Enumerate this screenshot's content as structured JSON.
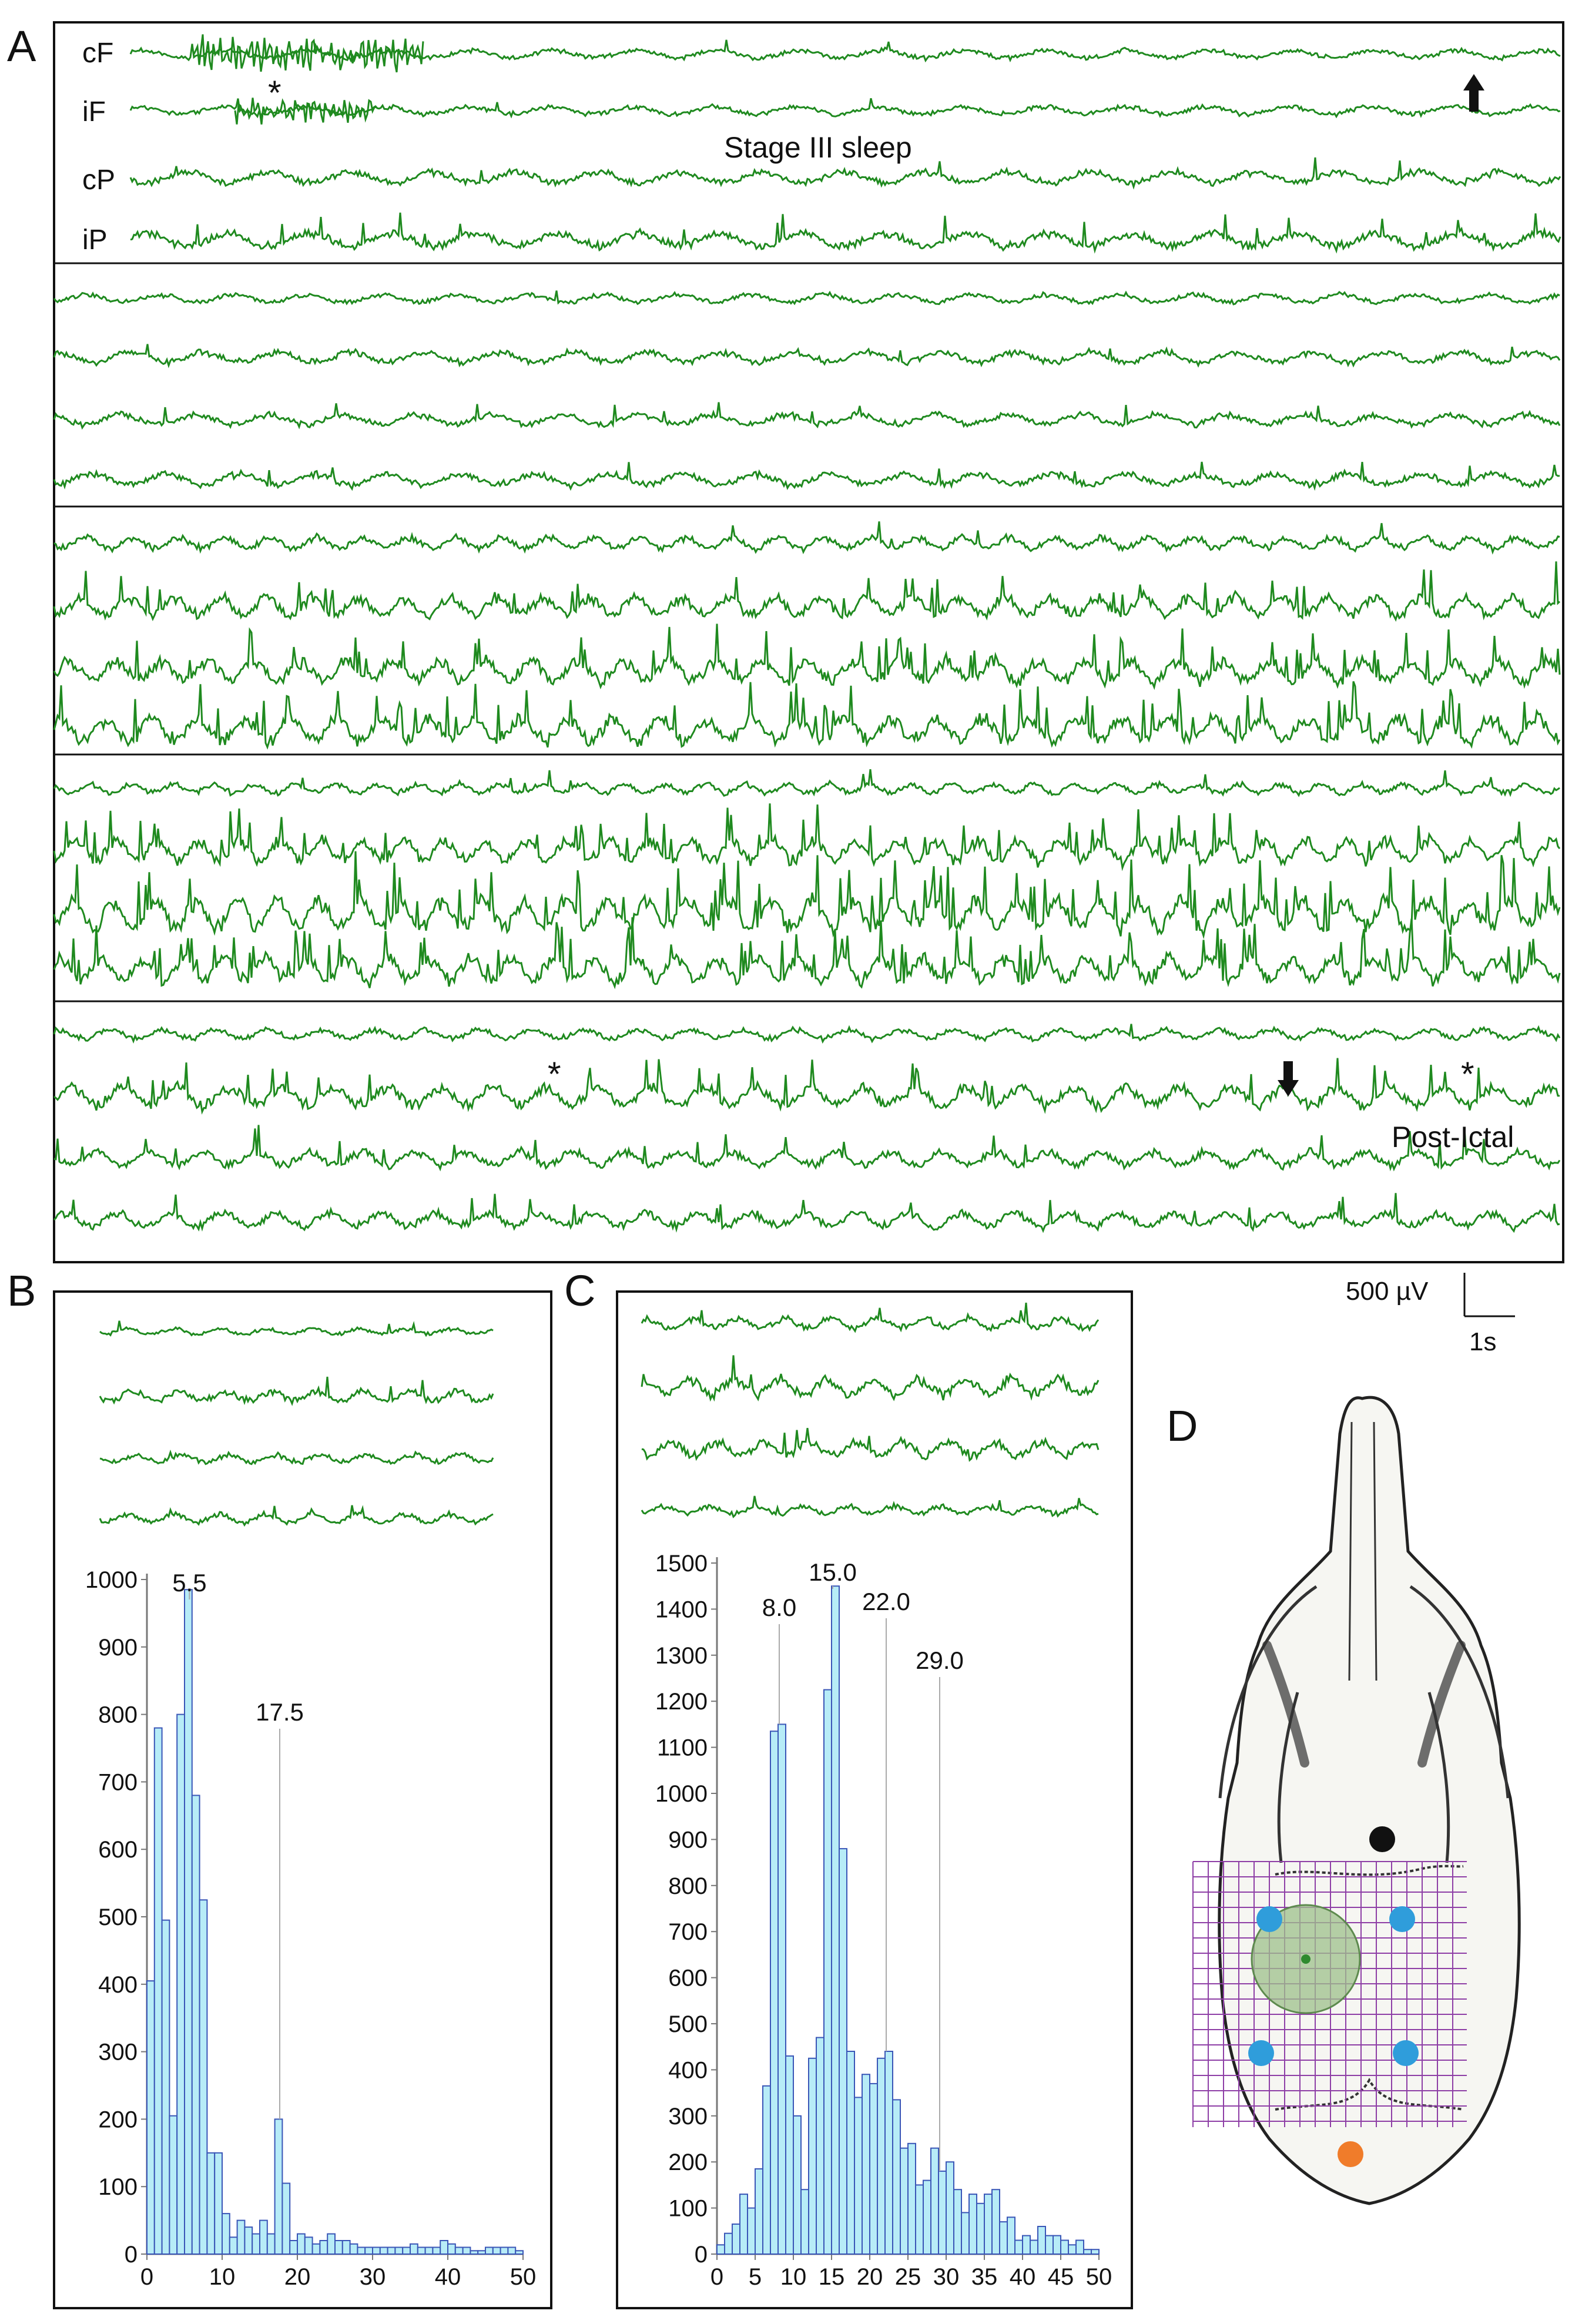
{
  "panels": {
    "A": {
      "letter": "A",
      "channels": [
        "cF",
        "iF",
        "cP",
        "iP"
      ],
      "sleep_label": "Stage III sleep",
      "post_ictal_label": "Post-Ictal",
      "asterisk": "*",
      "scale_bar": {
        "voltage": "500 µV",
        "time": "1s"
      },
      "trace_color": "#1f8a1f",
      "arrow_color": "#111111"
    },
    "B": {
      "letter": "B"
    },
    "C": {
      "letter": "C"
    },
    "D": {
      "letter": "D",
      "grid_color": "#8e3fa6",
      "electrode_colors": {
        "front": "#111111",
        "recording": "#2f9ddb",
        "rear": "#f07c2a",
        "lesion": "#9dc08b"
      }
    }
  },
  "chart_data": [
    {
      "panel": "B",
      "type": "bar",
      "x": [
        0,
        1,
        2,
        3,
        4,
        5,
        6,
        7,
        8,
        9,
        10,
        11,
        12,
        13,
        14,
        15,
        16,
        17,
        18,
        19,
        20,
        21,
        22,
        23,
        24,
        25,
        26,
        27,
        28,
        29,
        30,
        31,
        32,
        33,
        34,
        35,
        36,
        37,
        38,
        39,
        40,
        41,
        42,
        43,
        44,
        45,
        46,
        47,
        48,
        49
      ],
      "values": [
        405,
        780,
        495,
        205,
        800,
        985,
        680,
        525,
        150,
        150,
        60,
        25,
        50,
        40,
        30,
        50,
        30,
        200,
        105,
        20,
        30,
        25,
        15,
        20,
        30,
        20,
        20,
        15,
        10,
        10,
        10,
        10,
        10,
        10,
        10,
        15,
        10,
        10,
        10,
        20,
        15,
        10,
        10,
        5,
        5,
        10,
        10,
        10,
        10,
        5
      ],
      "annotations": [
        {
          "x": 5.5,
          "label": "5.5"
        },
        {
          "x": 17.5,
          "label": "17.5"
        }
      ],
      "xlim": [
        0,
        50
      ],
      "ylim": [
        0,
        1000
      ],
      "xticks": [
        0,
        10,
        20,
        30,
        40,
        50
      ],
      "yticks": [
        0,
        100,
        200,
        300,
        400,
        500,
        600,
        700,
        800,
        900,
        1000
      ],
      "bar_color": "#b7ecf7",
      "edge_color": "#3a56b7"
    },
    {
      "panel": "C",
      "type": "bar",
      "x": [
        0,
        1,
        2,
        3,
        4,
        5,
        6,
        7,
        8,
        9,
        10,
        11,
        12,
        13,
        14,
        15,
        16,
        17,
        18,
        19,
        20,
        21,
        22,
        23,
        24,
        25,
        26,
        27,
        28,
        29,
        30,
        31,
        32,
        33,
        34,
        35,
        36,
        37,
        38,
        39,
        40,
        41,
        42,
        43,
        44,
        45,
        46,
        47,
        48,
        49
      ],
      "values": [
        20,
        45,
        65,
        130,
        100,
        185,
        365,
        1135,
        1150,
        430,
        300,
        140,
        425,
        470,
        1225,
        1450,
        880,
        440,
        340,
        390,
        370,
        425,
        440,
        335,
        230,
        240,
        150,
        160,
        230,
        180,
        200,
        140,
        90,
        130,
        110,
        130,
        140,
        70,
        80,
        30,
        40,
        30,
        60,
        40,
        40,
        30,
        20,
        30,
        10,
        10
      ],
      "annotations": [
        {
          "x": 8.0,
          "label": "8.0"
        },
        {
          "x": 15.0,
          "label": "15.0"
        },
        {
          "x": 22.0,
          "label": "22.0"
        },
        {
          "x": 29.0,
          "label": "29.0"
        }
      ],
      "xlim": [
        0,
        50
      ],
      "ylim": [
        0,
        1500
      ],
      "xticks": [
        0,
        5,
        10,
        15,
        20,
        25,
        30,
        35,
        40,
        45,
        50
      ],
      "yticks": [
        0,
        100,
        200,
        300,
        400,
        500,
        600,
        700,
        800,
        900,
        1000,
        1100,
        1200,
        1300,
        1400,
        1500
      ],
      "bar_color": "#b7ecf7",
      "edge_color": "#3a56b7"
    }
  ]
}
